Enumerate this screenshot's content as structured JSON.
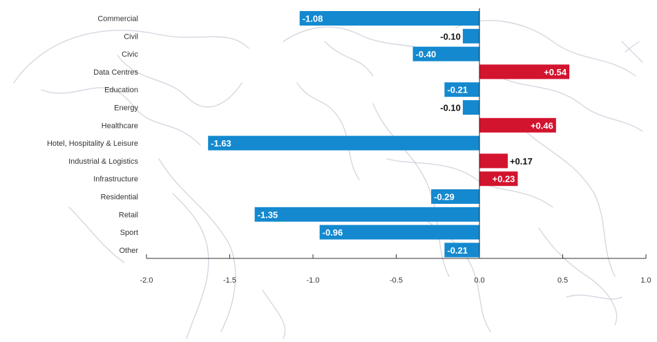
{
  "chart_data": {
    "type": "bar",
    "orientation": "horizontal",
    "categories": [
      "Commercial",
      "Civil",
      "Civic",
      "Data Centres",
      "Education",
      "Energy",
      "Healthcare",
      "Hotel, Hospitality & Leisure",
      "Industrial & Logistics",
      "Infrastructure",
      "Residential",
      "Retail",
      "Sport",
      "Other"
    ],
    "values": [
      -1.08,
      -0.1,
      -0.4,
      0.54,
      -0.21,
      -0.1,
      0.46,
      -1.63,
      0.17,
      0.23,
      -0.29,
      -1.35,
      -0.96,
      -0.21
    ],
    "value_labels": [
      "-1.08",
      "-0.10",
      "-0.40",
      "+0.54",
      "-0.21",
      "-0.10",
      "+0.46",
      "-1.63",
      "+0.17",
      "+0.23",
      "-0.29",
      "-1.35",
      "-0.96",
      "-0.21"
    ],
    "xlim": [
      -2.0,
      1.0
    ],
    "xticks": [
      -2.0,
      -1.5,
      -1.0,
      -0.5,
      0.0,
      0.5,
      1.0
    ],
    "xtick_labels": [
      "-2.0",
      "-1.5",
      "-1.0",
      "-0.5",
      "0.0",
      "0.5",
      "1.0"
    ],
    "colors": {
      "negative": "#1489cf",
      "positive": "#d3142f"
    },
    "grid": false,
    "title": "",
    "xlabel": "",
    "ylabel": ""
  }
}
